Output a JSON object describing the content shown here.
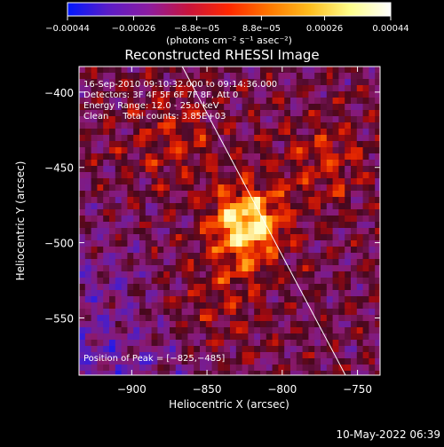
{
  "chart_data": {
    "type": "heatmap",
    "title": "Reconstructed RHESSI Image",
    "xlabel": "Heliocentric X (arcsec)",
    "ylabel": "Heliocentric Y (arcsec)",
    "xlim": [
      -935,
      -735
    ],
    "ylim": [
      -588,
      -383
    ],
    "xticks": [
      -900,
      -850,
      -800,
      -750
    ],
    "xtick_labels": [
      "−900",
      "−850",
      "−800",
      "−750"
    ],
    "yticks": [
      -400,
      -450,
      -500,
      -550
    ],
    "ytick_labels": [
      "−400",
      "−450",
      "−500",
      "−550"
    ],
    "colorbar": {
      "range": [
        -0.00044,
        0.00044
      ],
      "ticks": [
        -0.00044,
        -0.00026,
        -8.8e-05,
        8.8e-05,
        0.00026,
        0.00044
      ],
      "tick_labels": [
        "−0.00044",
        "−0.00026",
        "−8.8e−05",
        "8.8e−05",
        "0.00026",
        "0.00044"
      ],
      "unit_label": "(photons cm⁻² s⁻¹ asec⁻²)",
      "colors": [
        "#0018ff",
        "#5a1cc8",
        "#8c1ca0",
        "#c8143c",
        "#ff2800",
        "#ff7800",
        "#ffbe1e",
        "#ffff8c",
        "#ffffff"
      ]
    },
    "info_lines": [
      "16-Sep-2010 09:10:32.000 to 09:14:36.000",
      "Detectors: 3F 4F 5F 6F 7F 8F, Att 0",
      "Energy Range: 12.0 - 25.0 keV",
      "Clean     Total counts: 3.85E+03"
    ],
    "peak_label": "Position of Peak = [−825,−485]",
    "peak": [
      -825,
      -485
    ],
    "limb_line": [
      [
        -868,
        -380
      ],
      [
        -758,
        -588
      ]
    ],
    "grid": false,
    "legend": "none"
  },
  "footer": {
    "timestamp": "10-May-2022 06:39"
  }
}
